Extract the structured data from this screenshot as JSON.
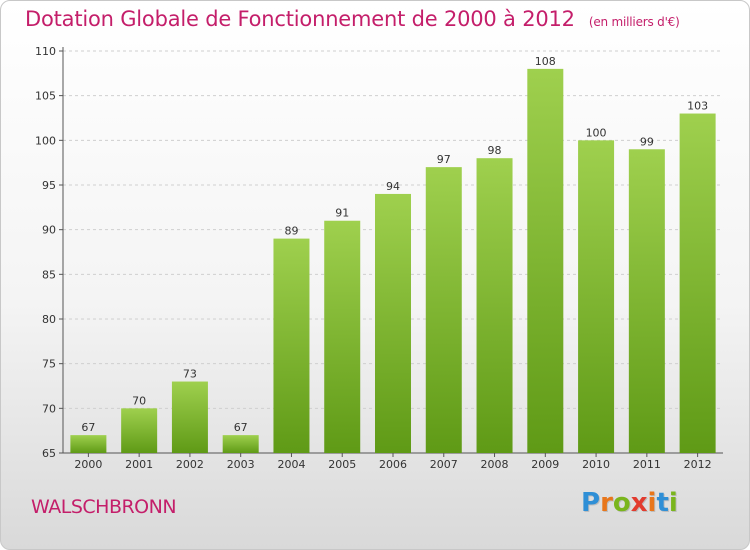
{
  "header": {
    "title": "Dotation Globale de Fonctionnement de 2000 à 2012",
    "unit_note": "(en milliers d'€)"
  },
  "footer": {
    "location": "WALSCHBRONN",
    "logo_letters": [
      "P",
      "r",
      "o",
      "x",
      "i",
      "t",
      "i"
    ],
    "logo_colors": [
      "#2f8fd6",
      "#e8761b",
      "#7ab51d",
      "#e23b2e",
      "#e8761b",
      "#2f8fd6",
      "#7ab51d"
    ]
  },
  "chart_data": {
    "type": "bar",
    "title": "Dotation Globale de Fonctionnement de 2000 à 2012",
    "xlabel": "",
    "ylabel": "",
    "categories": [
      "2000",
      "2001",
      "2002",
      "2003",
      "2004",
      "2005",
      "2006",
      "2007",
      "2008",
      "2009",
      "2010",
      "2011",
      "2012"
    ],
    "values": [
      67,
      70,
      73,
      67,
      89,
      91,
      94,
      97,
      98,
      108,
      100,
      99,
      103
    ],
    "ylim": [
      65,
      110
    ],
    "yticks": [
      65,
      70,
      75,
      80,
      85,
      90,
      95,
      100,
      105,
      110
    ],
    "grid": true,
    "bar_color": "#7dbb2e"
  }
}
